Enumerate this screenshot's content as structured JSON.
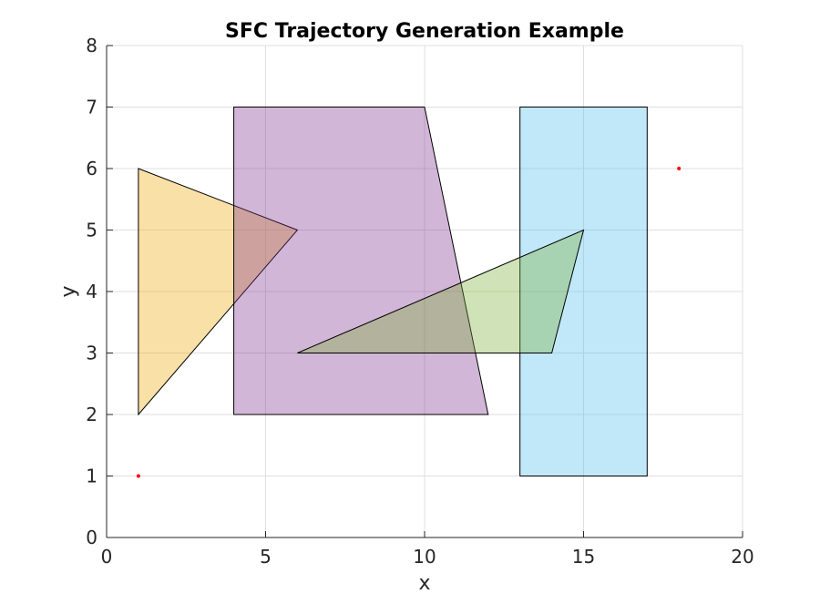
{
  "chart_data": {
    "type": "polygon-plot",
    "title": "SFC Trajectory Generation Example",
    "xlabel": "x",
    "ylabel": "y",
    "xlim": [
      0,
      20
    ],
    "ylim": [
      0,
      8
    ],
    "xticks": [
      0,
      5,
      10,
      15,
      20
    ],
    "yticks": [
      0,
      1,
      2,
      3,
      4,
      5,
      6,
      7,
      8
    ],
    "grid": true,
    "polygons": [
      {
        "id": "triangle-orange",
        "color": "#EDB120",
        "alpha": 0.4,
        "vertices": [
          [
            1,
            2
          ],
          [
            1,
            6
          ],
          [
            6,
            5
          ]
        ]
      },
      {
        "id": "trapezoid-purple",
        "color": "#7E2F8E",
        "alpha": 0.35,
        "vertices": [
          [
            4,
            2
          ],
          [
            4,
            7
          ],
          [
            10,
            7
          ],
          [
            12,
            2
          ]
        ]
      },
      {
        "id": "rectangle-cyan",
        "color": "#4DBEEE",
        "alpha": 0.35,
        "vertices": [
          [
            13,
            1
          ],
          [
            13,
            7
          ],
          [
            17,
            7
          ],
          [
            17,
            1
          ]
        ]
      },
      {
        "id": "quadrilateral-green",
        "color": "#77AC30",
        "alpha": 0.35,
        "vertices": [
          [
            6,
            3
          ],
          [
            15,
            5
          ],
          [
            14,
            3
          ]
        ]
      }
    ],
    "points": [
      {
        "id": "start-point",
        "x": 1,
        "y": 1,
        "color": "#ff0000"
      },
      {
        "id": "goal-point",
        "x": 18,
        "y": 6,
        "color": "#ff0000"
      }
    ]
  }
}
